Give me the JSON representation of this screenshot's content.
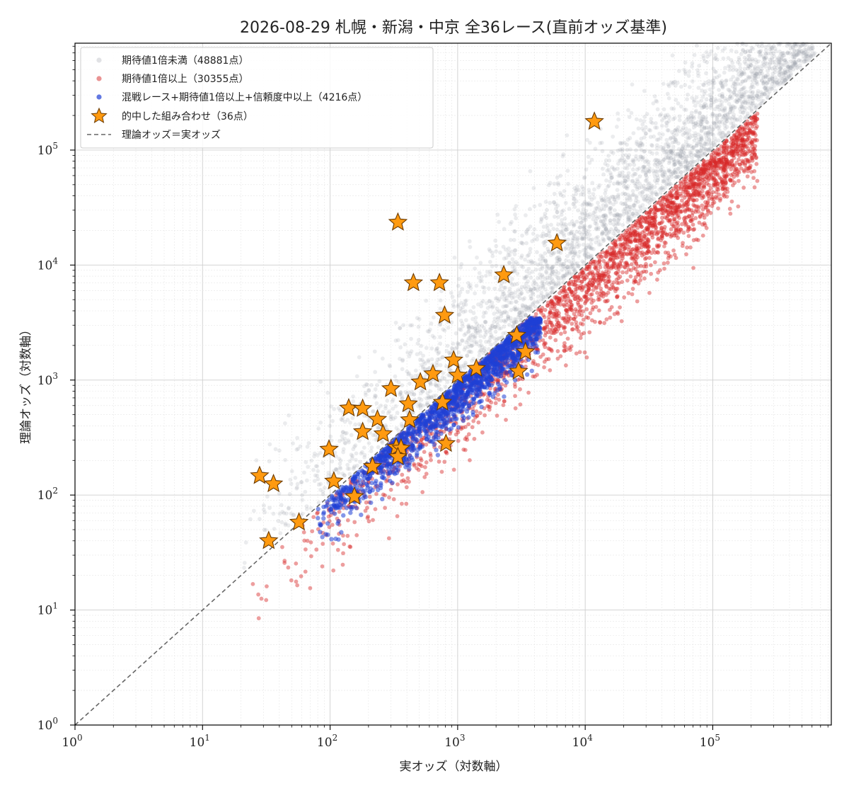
{
  "chart_data": {
    "type": "scatter",
    "title": "2026-08-29 札幌・新潟・中京 全36レース(直前オッズ基準)",
    "xlabel": "実オッズ（対数軸）",
    "ylabel": "理論オッズ（対数軸）",
    "xscale": "log",
    "yscale": "log",
    "xlim": [
      1,
      850000
    ],
    "ylim": [
      1,
      850000
    ],
    "grid": true,
    "legend_placement": "upper-left",
    "x_ticks": [
      {
        "base": "10",
        "exp": "0",
        "value": 1
      },
      {
        "base": "10",
        "exp": "1",
        "value": 10
      },
      {
        "base": "10",
        "exp": "2",
        "value": 100
      },
      {
        "base": "10",
        "exp": "3",
        "value": 1000
      },
      {
        "base": "10",
        "exp": "4",
        "value": 10000
      },
      {
        "base": "10",
        "exp": "5",
        "value": 100000
      }
    ],
    "y_ticks": [
      {
        "base": "10",
        "exp": "0",
        "value": 1
      },
      {
        "base": "10",
        "exp": "1",
        "value": 10
      },
      {
        "base": "10",
        "exp": "2",
        "value": 100
      },
      {
        "base": "10",
        "exp": "3",
        "value": 1000
      },
      {
        "base": "10",
        "exp": "4",
        "value": 10000
      },
      {
        "base": "10",
        "exp": "5",
        "value": 100000
      }
    ],
    "series": [
      {
        "name": "期待値1倍未満（48881点）",
        "color": "#9aa0aa",
        "marker": "circle",
        "count": 48881
      },
      {
        "name": "期待値1倍以上（30355点）",
        "color": "#d62728",
        "marker": "circle",
        "count": 30355
      },
      {
        "name": "混戦レース+期待値1倍以上+信頼度中以上（4216点）",
        "color": "#1f3fd6",
        "marker": "circle",
        "count": 4216
      },
      {
        "name": "的中した組み合わせ（36点）",
        "color": "#ff9a10",
        "marker": "star",
        "count": 36,
        "points": [
          {
            "x": 28,
            "y": 147
          },
          {
            "x": 36,
            "y": 125
          },
          {
            "x": 33,
            "y": 40
          },
          {
            "x": 57,
            "y": 58
          },
          {
            "x": 98,
            "y": 250
          },
          {
            "x": 107,
            "y": 132
          },
          {
            "x": 140,
            "y": 570
          },
          {
            "x": 180,
            "y": 565
          },
          {
            "x": 180,
            "y": 355
          },
          {
            "x": 155,
            "y": 97
          },
          {
            "x": 215,
            "y": 177
          },
          {
            "x": 235,
            "y": 455
          },
          {
            "x": 260,
            "y": 340
          },
          {
            "x": 300,
            "y": 840
          },
          {
            "x": 330,
            "y": 260
          },
          {
            "x": 360,
            "y": 255
          },
          {
            "x": 340,
            "y": 215
          },
          {
            "x": 410,
            "y": 620
          },
          {
            "x": 420,
            "y": 450
          },
          {
            "x": 510,
            "y": 960
          },
          {
            "x": 640,
            "y": 1130
          },
          {
            "x": 760,
            "y": 640
          },
          {
            "x": 810,
            "y": 280
          },
          {
            "x": 930,
            "y": 1490
          },
          {
            "x": 1000,
            "y": 1100
          },
          {
            "x": 1400,
            "y": 1260
          },
          {
            "x": 2900,
            "y": 2450
          },
          {
            "x": 3000,
            "y": 1190
          },
          {
            "x": 3400,
            "y": 1760
          },
          {
            "x": 340,
            "y": 23500
          },
          {
            "x": 450,
            "y": 7000
          },
          {
            "x": 720,
            "y": 7000
          },
          {
            "x": 790,
            "y": 3650
          },
          {
            "x": 2300,
            "y": 8200
          },
          {
            "x": 6000,
            "y": 15500
          },
          {
            "x": 11800,
            "y": 177000
          }
        ]
      },
      {
        "name": "理論オッズ＝実オッズ",
        "color": "#666666",
        "style": "dashed",
        "line": [
          [
            1,
            1
          ],
          [
            850000,
            850000
          ]
        ]
      }
    ]
  }
}
